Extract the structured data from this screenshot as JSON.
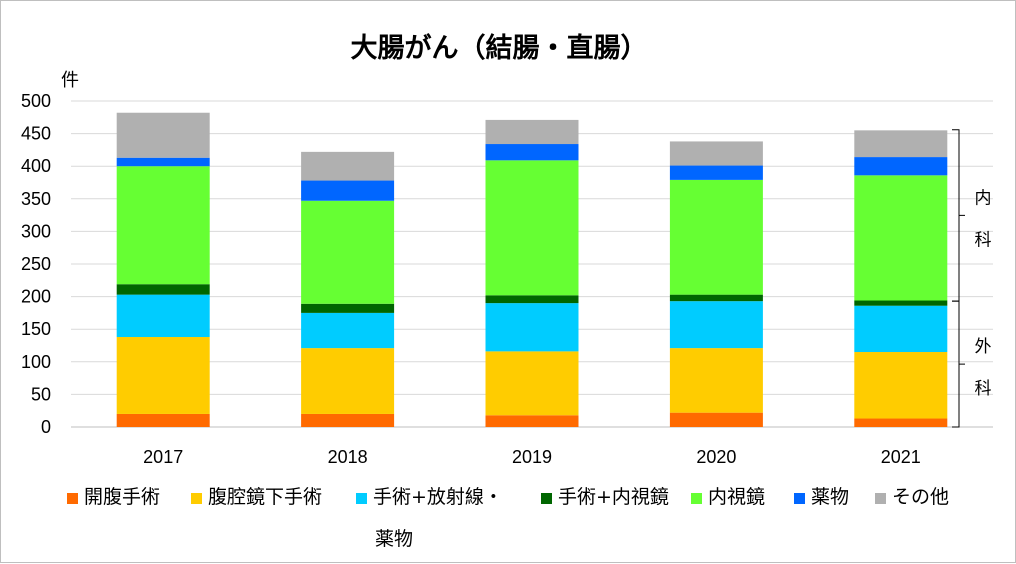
{
  "chart_data": {
    "type": "bar",
    "stacked": true,
    "title": "大腸がん（結腸・直腸）",
    "ylabel": "件",
    "ylim": [
      0,
      500
    ],
    "yticks": [
      0,
      50,
      100,
      150,
      200,
      250,
      300,
      350,
      400,
      450,
      500
    ],
    "grid": true,
    "legend_position": "bottom",
    "categories": [
      "2017",
      "2018",
      "2019",
      "2020",
      "2021"
    ],
    "series": [
      {
        "name": "開腹手術",
        "color": "#FF6A00",
        "values": [
          20,
          20,
          18,
          22,
          13
        ]
      },
      {
        "name": "腹腔鏡下手術",
        "color": "#FFCC00",
        "values": [
          118,
          101,
          98,
          99,
          102
        ]
      },
      {
        "name": "手術+放射線・薬物",
        "color": "#00CCFF",
        "values": [
          65,
          54,
          74,
          72,
          71
        ]
      },
      {
        "name": "手術+内視鏡",
        "color": "#006600",
        "values": [
          16,
          14,
          12,
          10,
          8
        ]
      },
      {
        "name": "内視鏡",
        "color": "#66FF33",
        "values": [
          181,
          158,
          207,
          176,
          192
        ]
      },
      {
        "name": "薬物",
        "color": "#0066FF",
        "values": [
          13,
          31,
          25,
          22,
          28
        ]
      },
      {
        "name": "その他",
        "color": "#B0B0B0",
        "values": [
          69,
          44,
          37,
          37,
          41
        ]
      }
    ],
    "legend_lines": [
      [
        "開腹手術",
        "腹腔鏡下手術",
        "手術+放射線・"
      ],
      [
        "薬物"
      ]
    ],
    "legend_extra": [
      "手術+内視鏡",
      "内視鏡",
      "薬物",
      "その他"
    ],
    "annotations": [
      {
        "text_lines": [
          "内",
          "科"
        ],
        "range": [
          193,
          456
        ],
        "applies_to": "2021"
      },
      {
        "text_lines": [
          "外",
          "科"
        ],
        "range": [
          0,
          193
        ],
        "applies_to": "2021"
      }
    ]
  }
}
